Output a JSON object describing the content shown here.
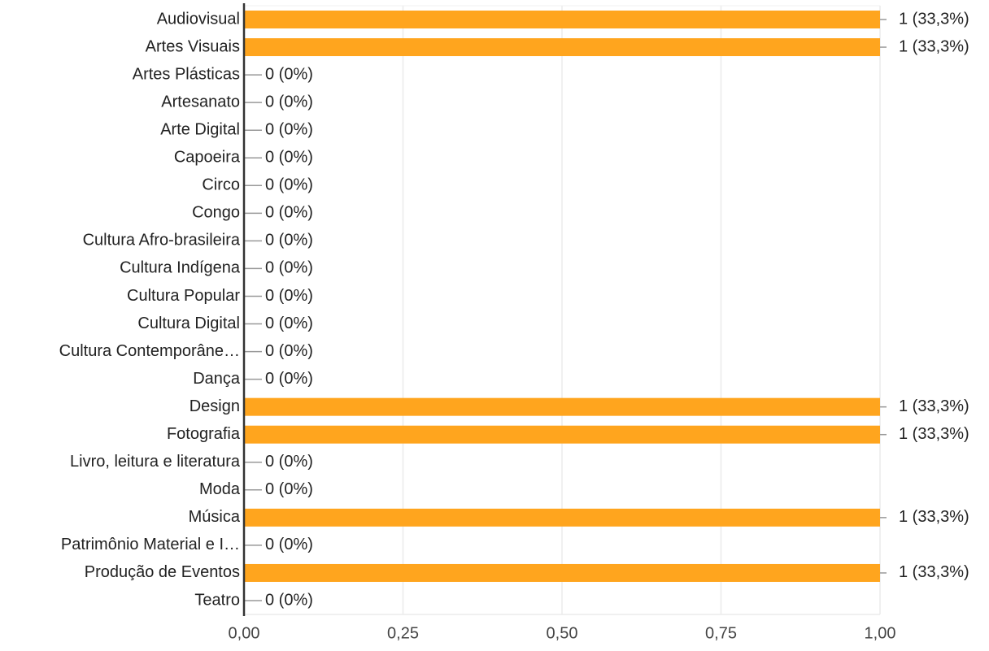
{
  "chart_data": {
    "type": "hbar",
    "categories": [
      "Audiovisual",
      "Artes Visuais",
      "Artes Plásticas",
      "Artesanato",
      "Arte Digital",
      "Capoeira",
      "Circo",
      "Congo",
      "Cultura Afro-brasileira",
      "Cultura Indígena",
      "Cultura Popular",
      "Cultura Digital",
      "Cultura Contemporâne…",
      "Dança",
      "Design",
      "Fotografia",
      "Livro, leitura e literatura",
      "Moda",
      "Música",
      "Patrimônio Material e I…",
      "Produção de Eventos",
      "Teatro"
    ],
    "values": [
      1,
      1,
      0,
      0,
      0,
      0,
      0,
      0,
      0,
      0,
      0,
      0,
      0,
      0,
      1,
      1,
      0,
      0,
      1,
      0,
      1,
      0
    ],
    "value_labels": [
      "1 (33,3%)",
      "1 (33,3%)",
      "0 (0%)",
      "0 (0%)",
      "0 (0%)",
      "0 (0%)",
      "0 (0%)",
      "0 (0%)",
      "0 (0%)",
      "0 (0%)",
      "0 (0%)",
      "0 (0%)",
      "0 (0%)",
      "0 (0%)",
      "1 (33,3%)",
      "1 (33,3%)",
      "0 (0%)",
      "0 (0%)",
      "1 (33,3%)",
      "0 (0%)",
      "1 (33,3%)",
      "0 (0%)"
    ],
    "color": "#ffa51e",
    "xlim": [
      0,
      1
    ],
    "xticks": [
      {
        "value": 0,
        "label": "0,00"
      },
      {
        "value": 0.25,
        "label": "0,25"
      },
      {
        "value": 0.5,
        "label": "0,50"
      },
      {
        "value": 0.75,
        "label": "0,75"
      },
      {
        "value": 1,
        "label": "1,00"
      }
    ],
    "grid": true
  }
}
